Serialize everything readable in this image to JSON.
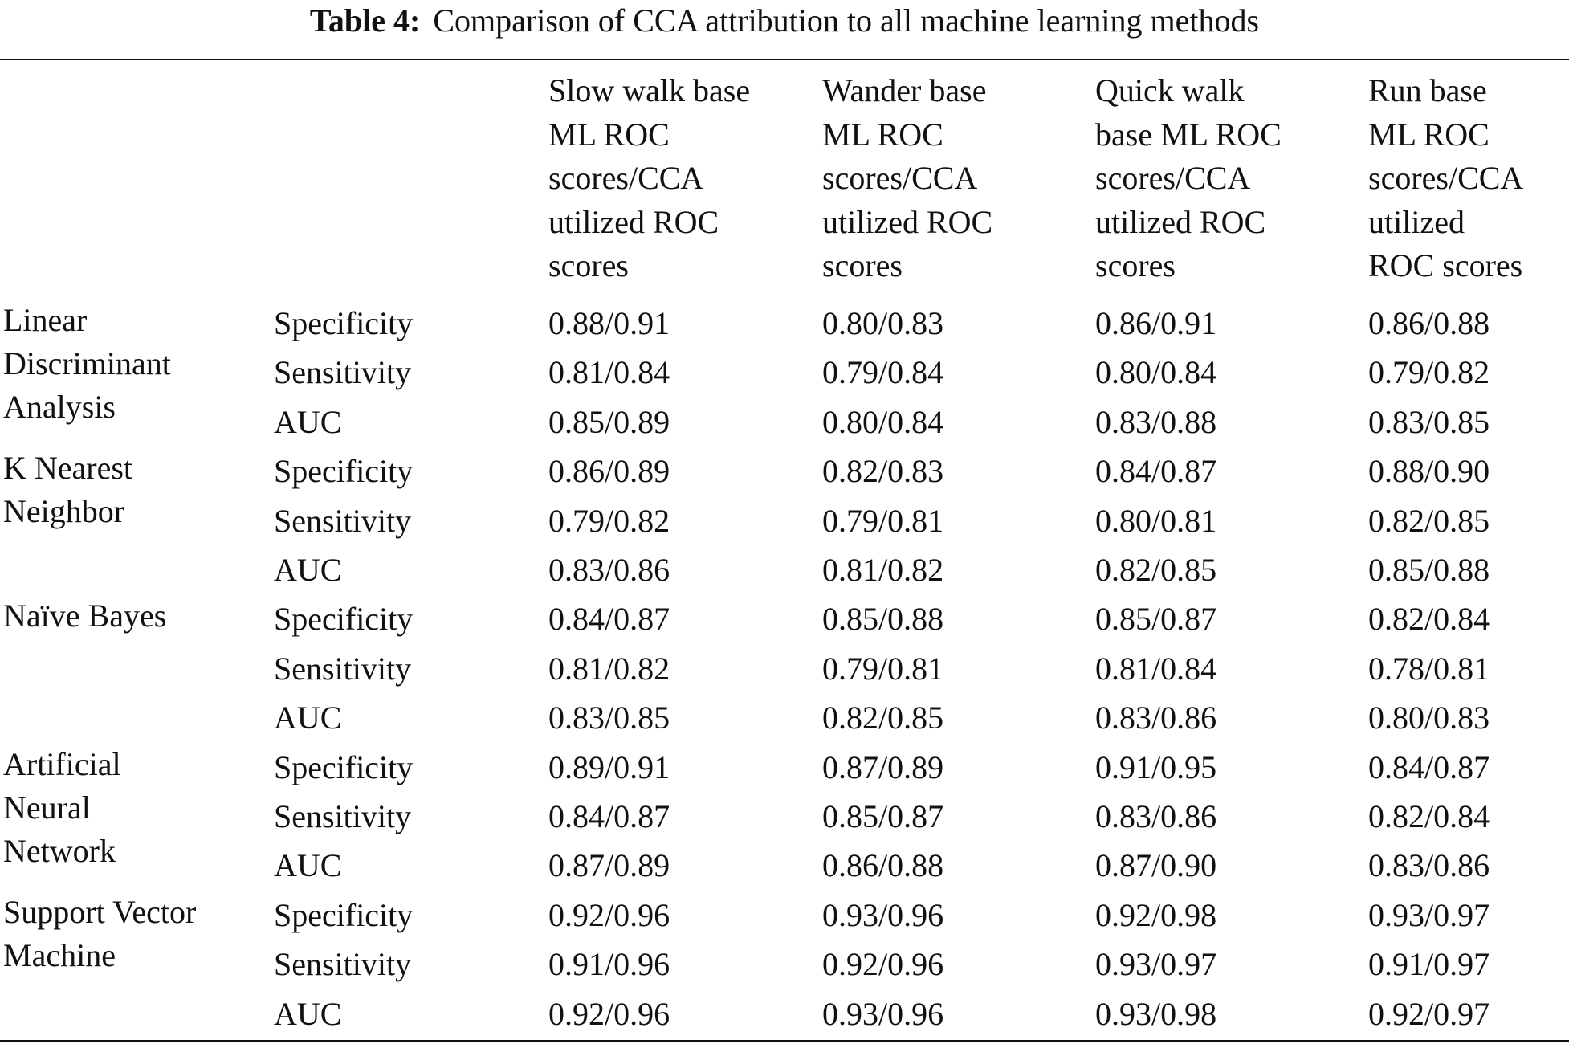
{
  "caption": {
    "label": "Table 4:",
    "text": "Comparison of CCA attribution to all machine learning methods"
  },
  "columns": [
    [
      "Slow walk base",
      "ML ROC",
      "scores/CCA",
      "utilized ROC",
      "scores"
    ],
    [
      "Wander base",
      "ML ROC",
      "scores/CCA",
      "utilized ROC",
      "scores"
    ],
    [
      "Quick walk",
      "base ML ROC",
      "scores/CCA",
      "utilized ROC",
      "scores"
    ],
    [
      "Run base",
      "ML ROC",
      "scores/CCA",
      "utilized",
      "ROC scores"
    ]
  ],
  "groups": [
    {
      "method": [
        "Linear",
        "Discriminant",
        "Analysis"
      ],
      "rows": [
        {
          "metric": "Specificity",
          "values": [
            "0.88/0.91",
            "0.80/0.83",
            "0.86/0.91",
            "0.86/0.88"
          ]
        },
        {
          "metric": "Sensitivity",
          "values": [
            "0.81/0.84",
            "0.79/0.84",
            "0.80/0.84",
            "0.79/0.82"
          ]
        },
        {
          "metric": "AUC",
          "values": [
            "0.85/0.89",
            "0.80/0.84",
            "0.83/0.88",
            "0.83/0.85"
          ]
        }
      ]
    },
    {
      "method": [
        "K Nearest",
        "Neighbor"
      ],
      "rows": [
        {
          "metric": "Specificity",
          "values": [
            "0.86/0.89",
            "0.82/0.83",
            "0.84/0.87",
            "0.88/0.90"
          ]
        },
        {
          "metric": "Sensitivity",
          "values": [
            "0.79/0.82",
            "0.79/0.81",
            "0.80/0.81",
            "0.82/0.85"
          ]
        },
        {
          "metric": "AUC",
          "values": [
            "0.83/0.86",
            "0.81/0.82",
            "0.82/0.85",
            "0.85/0.88"
          ]
        }
      ]
    },
    {
      "method": [
        "Naïve Bayes"
      ],
      "rows": [
        {
          "metric": "Specificity",
          "values": [
            "0.84/0.87",
            "0.85/0.88",
            "0.85/0.87",
            "0.82/0.84"
          ]
        },
        {
          "metric": "Sensitivity",
          "values": [
            "0.81/0.82",
            "0.79/0.81",
            "0.81/0.84",
            "0.78/0.81"
          ]
        },
        {
          "metric": "AUC",
          "values": [
            "0.83/0.85",
            "0.82/0.85",
            "0.83/0.86",
            "0.80/0.83"
          ]
        }
      ]
    },
    {
      "method": [
        "Artificial",
        "Neural",
        "Network"
      ],
      "rows": [
        {
          "metric": "Specificity",
          "values": [
            "0.89/0.91",
            "0.87/0.89",
            "0.91/0.95",
            "0.84/0.87"
          ]
        },
        {
          "metric": "Sensitivity",
          "values": [
            "0.84/0.87",
            "0.85/0.87",
            "0.83/0.86",
            "0.82/0.84"
          ]
        },
        {
          "metric": "AUC",
          "values": [
            "0.87/0.89",
            "0.86/0.88",
            "0.87/0.90",
            "0.83/0.86"
          ]
        }
      ]
    },
    {
      "method": [
        "Support Vector",
        "Machine"
      ],
      "rows": [
        {
          "metric": "Specificity",
          "values": [
            "0.92/0.96",
            "0.93/0.96",
            "0.92/0.98",
            "0.93/0.97"
          ]
        },
        {
          "metric": "Sensitivity",
          "values": [
            "0.91/0.96",
            "0.92/0.96",
            "0.93/0.97",
            "0.91/0.97"
          ]
        },
        {
          "metric": "AUC",
          "values": [
            "0.92/0.96",
            "0.93/0.96",
            "0.93/0.98",
            "0.92/0.97"
          ]
        }
      ]
    }
  ]
}
